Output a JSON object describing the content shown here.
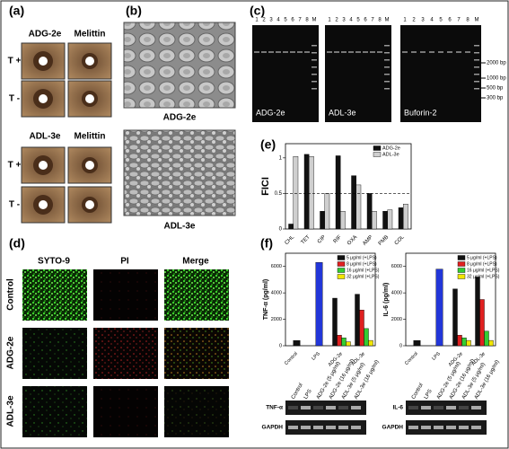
{
  "a": {
    "label": "(a)",
    "groups": [
      {
        "title": "ADG-2e",
        "control": "Melittin"
      },
      {
        "title": "ADL-3e",
        "control": "Melittin"
      }
    ],
    "rows": [
      "T +",
      "T -"
    ]
  },
  "b": {
    "label": "(b)",
    "images": [
      "ADG-2e",
      "ADL-3e"
    ]
  },
  "c": {
    "label": "(c)",
    "lanes": [
      "1",
      "2",
      "3",
      "4",
      "5",
      "6",
      "7",
      "8",
      "M"
    ],
    "gels": [
      "ADG-2e",
      "ADL-3e",
      "Buforin-2"
    ],
    "markers": [
      "2000 bp",
      "1000 bp",
      "500 bp",
      "300 bp"
    ]
  },
  "d": {
    "label": "(d)",
    "columns": [
      "SYTO-9",
      "PI",
      "Merge"
    ],
    "rows": [
      "Control",
      "ADG-2e",
      "ADL-3e"
    ]
  },
  "e": {
    "label": "(e)"
  },
  "f": {
    "label": "(f)",
    "blot_lanes": [
      "Control",
      "LPS",
      "ADG-2e (5 μg/ml)",
      "ADG-2e (16 μg/ml)",
      "ADL-3e (5 μg/ml)",
      "ADL-3e (16 μg/ml)"
    ],
    "blots": [
      [
        "TNF-α",
        "GAPDH"
      ],
      [
        "IL-6",
        "GAPDH"
      ]
    ]
  },
  "chart_data": [
    {
      "type": "bar",
      "ylabel": "FICI",
      "categories": [
        "CHL",
        "TET",
        "CIP",
        "RIF",
        "OXA",
        "AMP",
        "PMB",
        "COL"
      ],
      "series": [
        {
          "name": "ADG-2e",
          "color": "#111111",
          "values": [
            0.07,
            1.05,
            0.25,
            1.03,
            0.75,
            0.5,
            0.25,
            0.3
          ]
        },
        {
          "name": "ADL-3e",
          "color": "#cfcfcf",
          "values": [
            1.02,
            1.02,
            0.5,
            0.25,
            0.62,
            0.25,
            0.27,
            0.35
          ]
        }
      ],
      "ylim": [
        0,
        1.2
      ],
      "yticks": [
        0,
        0.5,
        1
      ],
      "threshold": 0.5,
      "legend": "upper right"
    },
    {
      "type": "bar",
      "ylabel": "TNF-α (pg/ml)",
      "categories": [
        "Control",
        "LPS",
        "ADG-2e",
        "ADL-3e"
      ],
      "single_values": [
        400,
        6300,
        null,
        null
      ],
      "single_colors": [
        "#111111",
        "#2236d8",
        null,
        null
      ],
      "series": [
        {
          "name": "5 μg/ml (+LPS)",
          "color": "#111111",
          "values": [
            null,
            null,
            3600,
            3900
          ]
        },
        {
          "name": "8 μg/ml (+LPS)",
          "color": "#e02020",
          "values": [
            null,
            null,
            800,
            2700
          ]
        },
        {
          "name": "16 μg/ml (+LPS)",
          "color": "#33cc33",
          "values": [
            null,
            null,
            600,
            1300
          ]
        },
        {
          "name": "32 μg/ml (+LPS)",
          "color": "#f2e600",
          "values": [
            null,
            null,
            300,
            400
          ]
        }
      ],
      "ylim": [
        0,
        7000
      ],
      "yticks": [
        0,
        2000,
        4000,
        6000
      ],
      "legend": "upper right"
    },
    {
      "type": "bar",
      "ylabel": "IL-6 (pg/ml)",
      "categories": [
        "Control",
        "LPS",
        "ADG-2e",
        "ADL-3e"
      ],
      "single_values": [
        400,
        5800,
        null,
        null
      ],
      "single_colors": [
        "#111111",
        "#2236d8",
        null,
        null
      ],
      "series": [
        {
          "name": "5 μg/ml (+LPS)",
          "color": "#111111",
          "values": [
            null,
            null,
            4300,
            5200
          ]
        },
        {
          "name": "8 μg/ml (+LPS)",
          "color": "#e02020",
          "values": [
            null,
            null,
            800,
            3500
          ]
        },
        {
          "name": "16 μg/ml (+LPS)",
          "color": "#33cc33",
          "values": [
            null,
            null,
            600,
            1100
          ]
        },
        {
          "name": "32 μg/ml (+LPS)",
          "color": "#f2e600",
          "values": [
            null,
            null,
            400,
            400
          ]
        }
      ],
      "ylim": [
        0,
        7000
      ],
      "yticks": [
        0,
        2000,
        4000,
        6000
      ],
      "legend": "upper right"
    }
  ]
}
